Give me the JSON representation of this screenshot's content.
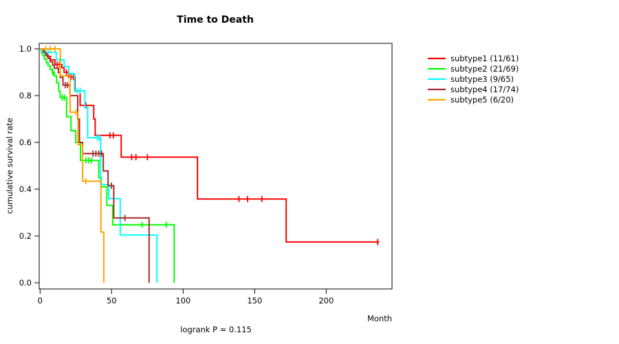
{
  "title": "Time to Death",
  "annotation": "logrank P = 0.115",
  "axes": {
    "x_label": "Month",
    "y_label": "cumulative survival rate"
  },
  "chart_data": {
    "type": "line",
    "variant": "kaplan-meier-step",
    "title": "Time to Death",
    "xlabel": "Month",
    "ylabel": "cumulative survival rate",
    "annotation": "logrank P = 0.115",
    "xlim": [
      0,
      237
    ],
    "ylim": [
      0.0,
      1.0
    ],
    "xticks": [
      0,
      50,
      100,
      150,
      200
    ],
    "yticks": [
      0.0,
      0.2,
      0.4,
      0.6,
      0.8,
      1.0
    ],
    "grid": false,
    "legend_position": "right-outside",
    "series": [
      {
        "name": "subtype1",
        "label": "subtype1 (11/61)",
        "events": "11/61",
        "color": "#FF0000",
        "end_month": 237,
        "steps": [
          [
            0,
            1.0
          ],
          [
            1,
            0.983
          ],
          [
            4.8,
            0.968
          ],
          [
            7.2,
            0.953
          ],
          [
            10.4,
            0.933
          ],
          [
            15.2,
            0.919
          ],
          [
            16.8,
            0.899
          ],
          [
            20,
            0.879
          ],
          [
            24.4,
            0.82
          ],
          [
            28,
            0.758
          ],
          [
            37.5,
            0.7
          ],
          [
            38.5,
            0.63
          ],
          [
            56.7,
            0.537
          ],
          [
            110,
            0.358
          ],
          [
            172,
            0.174
          ]
        ],
        "censor_months": [
          12,
          13.7,
          18.5,
          21.5,
          23.3,
          32,
          48.8,
          51.2,
          64,
          67,
          75,
          139,
          145,
          155,
          236
        ]
      },
      {
        "name": "subtype2",
        "label": "subtype2 (21/69)",
        "events": "21/69",
        "color": "#00FF00",
        "end_month": 93.7,
        "steps": [
          [
            0,
            1.0
          ],
          [
            1,
            0.986
          ],
          [
            2,
            0.971
          ],
          [
            3,
            0.957
          ],
          [
            4.3,
            0.942
          ],
          [
            5.5,
            0.928
          ],
          [
            7,
            0.913
          ],
          [
            8.5,
            0.899
          ],
          [
            10,
            0.884
          ],
          [
            11.5,
            0.855
          ],
          [
            13,
            0.82
          ],
          [
            14,
            0.792
          ],
          [
            18.5,
            0.71
          ],
          [
            21.6,
            0.65
          ],
          [
            24.9,
            0.6
          ],
          [
            28.2,
            0.523
          ],
          [
            41,
            0.449
          ],
          [
            42.7,
            0.41
          ],
          [
            46.7,
            0.331
          ],
          [
            50.7,
            0.248
          ],
          [
            93.7,
            0.0
          ]
        ],
        "censor_months": [
          9,
          15.5,
          17,
          32,
          34,
          36,
          71.3,
          88.2
        ]
      },
      {
        "name": "subtype3",
        "label": "subtype3 (9/65)",
        "events": "9/65",
        "color": "#00FFFF",
        "end_month": 81.7,
        "steps": [
          [
            0,
            1.0
          ],
          [
            1.5,
            0.985
          ],
          [
            11.3,
            0.953
          ],
          [
            16.8,
            0.924
          ],
          [
            20,
            0.894
          ],
          [
            24,
            0.821
          ],
          [
            31.3,
            0.75
          ],
          [
            33.2,
            0.62
          ],
          [
            42.3,
            0.42
          ],
          [
            48,
            0.36
          ],
          [
            56,
            0.204
          ],
          [
            81.7,
            0.0
          ]
        ],
        "censor_months": [
          3.2,
          5.6,
          14.4,
          26,
          28,
          40,
          41.5
        ]
      },
      {
        "name": "subtype4",
        "label": "subtype4 (17/74)",
        "events": "17/74",
        "color": "#A52A2A",
        "end_month": 76.2,
        "steps": [
          [
            0,
            1.0
          ],
          [
            2.4,
            0.987
          ],
          [
            4,
            0.973
          ],
          [
            5.6,
            0.959
          ],
          [
            7,
            0.945
          ],
          [
            8.8,
            0.93
          ],
          [
            10,
            0.917
          ],
          [
            12.8,
            0.898
          ],
          [
            14,
            0.878
          ],
          [
            16,
            0.845
          ],
          [
            20.9,
            0.8
          ],
          [
            26.3,
            0.7
          ],
          [
            27.5,
            0.6
          ],
          [
            29.7,
            0.552
          ],
          [
            44.2,
            0.478
          ],
          [
            47.5,
            0.415
          ],
          [
            51.5,
            0.277
          ],
          [
            76.2,
            0.0
          ]
        ],
        "censor_months": [
          17.6,
          19.2,
          37,
          39,
          41,
          43,
          49.9,
          59.3
        ]
      },
      {
        "name": "subtype5",
        "label": "subtype5 (6/20)",
        "events": "6/20",
        "color": "#FFA500",
        "end_month": 44.5,
        "steps": [
          [
            0,
            1.0
          ],
          [
            14.1,
            0.885
          ],
          [
            21,
            0.729
          ],
          [
            26.5,
            0.591
          ],
          [
            29.7,
            0.434
          ],
          [
            42.5,
            0.217
          ],
          [
            44.5,
            0.0
          ]
        ],
        "censor_months": [
          4,
          7.2,
          10.4,
          25,
          32
        ]
      }
    ]
  }
}
